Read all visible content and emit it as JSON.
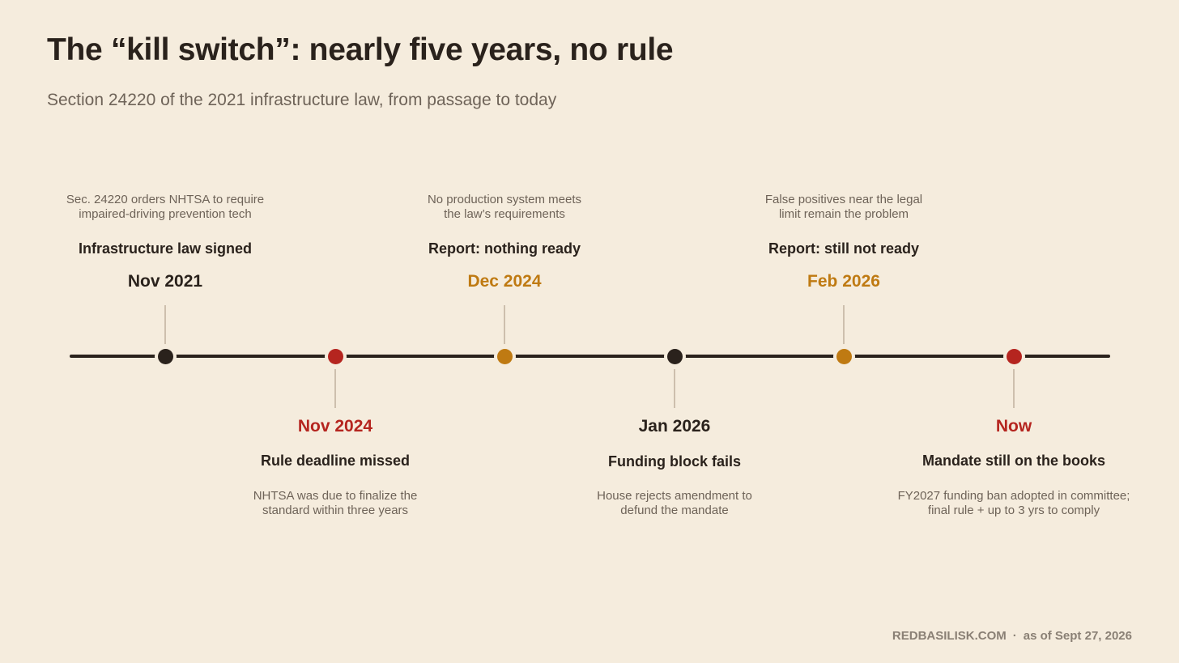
{
  "title": "The “kill switch”: nearly five years, no rule",
  "subtitle": "Section 24220 of the 2021 infrastructure law, from passage to today",
  "colors": {
    "background": "#f5ecdd",
    "ink": "#2a221c",
    "muted": "#6e6358",
    "red": "#b5251f",
    "amber": "#bf7a12",
    "connector": "#cdbfad"
  },
  "events": [
    {
      "date": "Nov 2021",
      "headline": "Infrastructure law signed",
      "desc_lines": [
        "Sec. 24220 orders NHTSA to require",
        "impaired-driving prevention tech"
      ],
      "position": "above",
      "color": "#2a221c"
    },
    {
      "date": "Nov 2024",
      "headline": "Rule deadline missed",
      "desc_lines": [
        "NHTSA was due to finalize the",
        "standard within three years"
      ],
      "position": "below",
      "color": "#b5251f"
    },
    {
      "date": "Dec 2024",
      "headline": "Report: nothing ready",
      "desc_lines": [
        "No production system meets",
        "the law’s requirements"
      ],
      "position": "above",
      "color": "#bf7a12"
    },
    {
      "date": "Jan 2026",
      "headline": "Funding block fails",
      "desc_lines": [
        "House rejects amendment to",
        "defund the mandate"
      ],
      "position": "below",
      "color": "#2a221c"
    },
    {
      "date": "Feb 2026",
      "headline": "Report: still not ready",
      "desc_lines": [
        "False positives near the legal",
        "limit remain the problem"
      ],
      "position": "above",
      "color": "#bf7a12"
    },
    {
      "date": "Now",
      "headline": "Mandate still on the books",
      "desc_lines": [
        "FY2027 funding ban adopted in committee;",
        "final rule + up to 3 yrs to comply"
      ],
      "position": "below",
      "color": "#b5251f"
    }
  ],
  "footer": {
    "source": "REDBASILISK.COM",
    "separator": "·",
    "asof": "as of Sept 27, 2026"
  }
}
